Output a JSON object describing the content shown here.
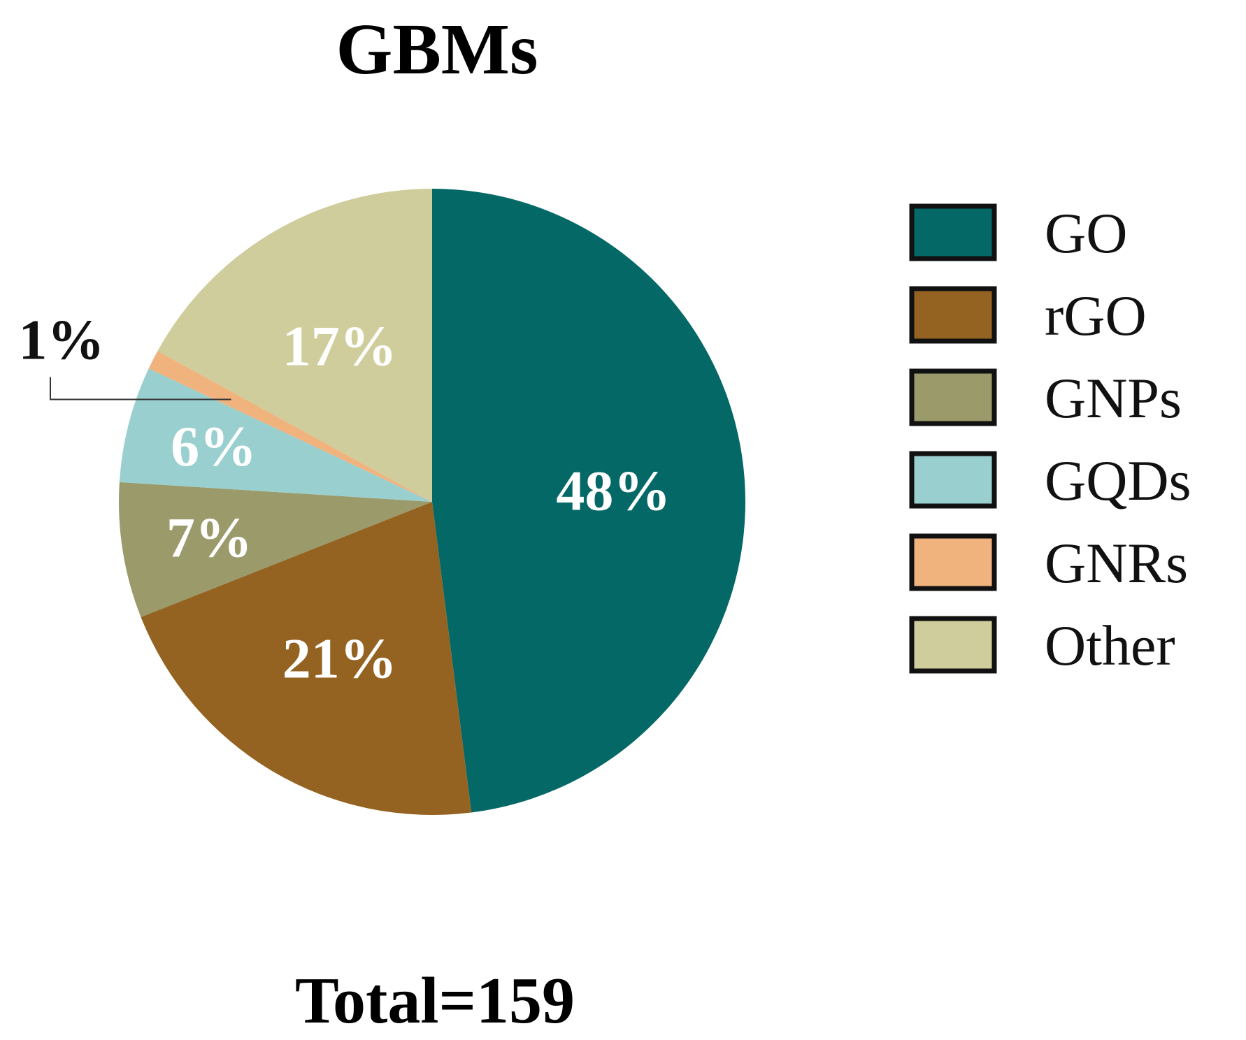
{
  "chart_data": {
    "type": "pie",
    "title": "GBMs",
    "total_label": "Total=159",
    "slices": [
      {
        "name": "GO",
        "value": 48,
        "label": "48%",
        "color": "#046866"
      },
      {
        "name": "rGO",
        "value": 21,
        "label": "21%",
        "color": "#946321"
      },
      {
        "name": "GNPs",
        "value": 7,
        "label": "7%",
        "color": "#9b9a6b"
      },
      {
        "name": "GQDs",
        "value": 6,
        "label": "6%",
        "color": "#99cfcf"
      },
      {
        "name": "GNRs",
        "value": 1,
        "label": "1%",
        "color": "#f0b37e"
      },
      {
        "name": "Other",
        "value": 17,
        "label": "17%",
        "color": "#cfcd9b"
      }
    ],
    "legend_position": "right",
    "start_direction": "12 o'clock",
    "direction": "clockwise"
  }
}
